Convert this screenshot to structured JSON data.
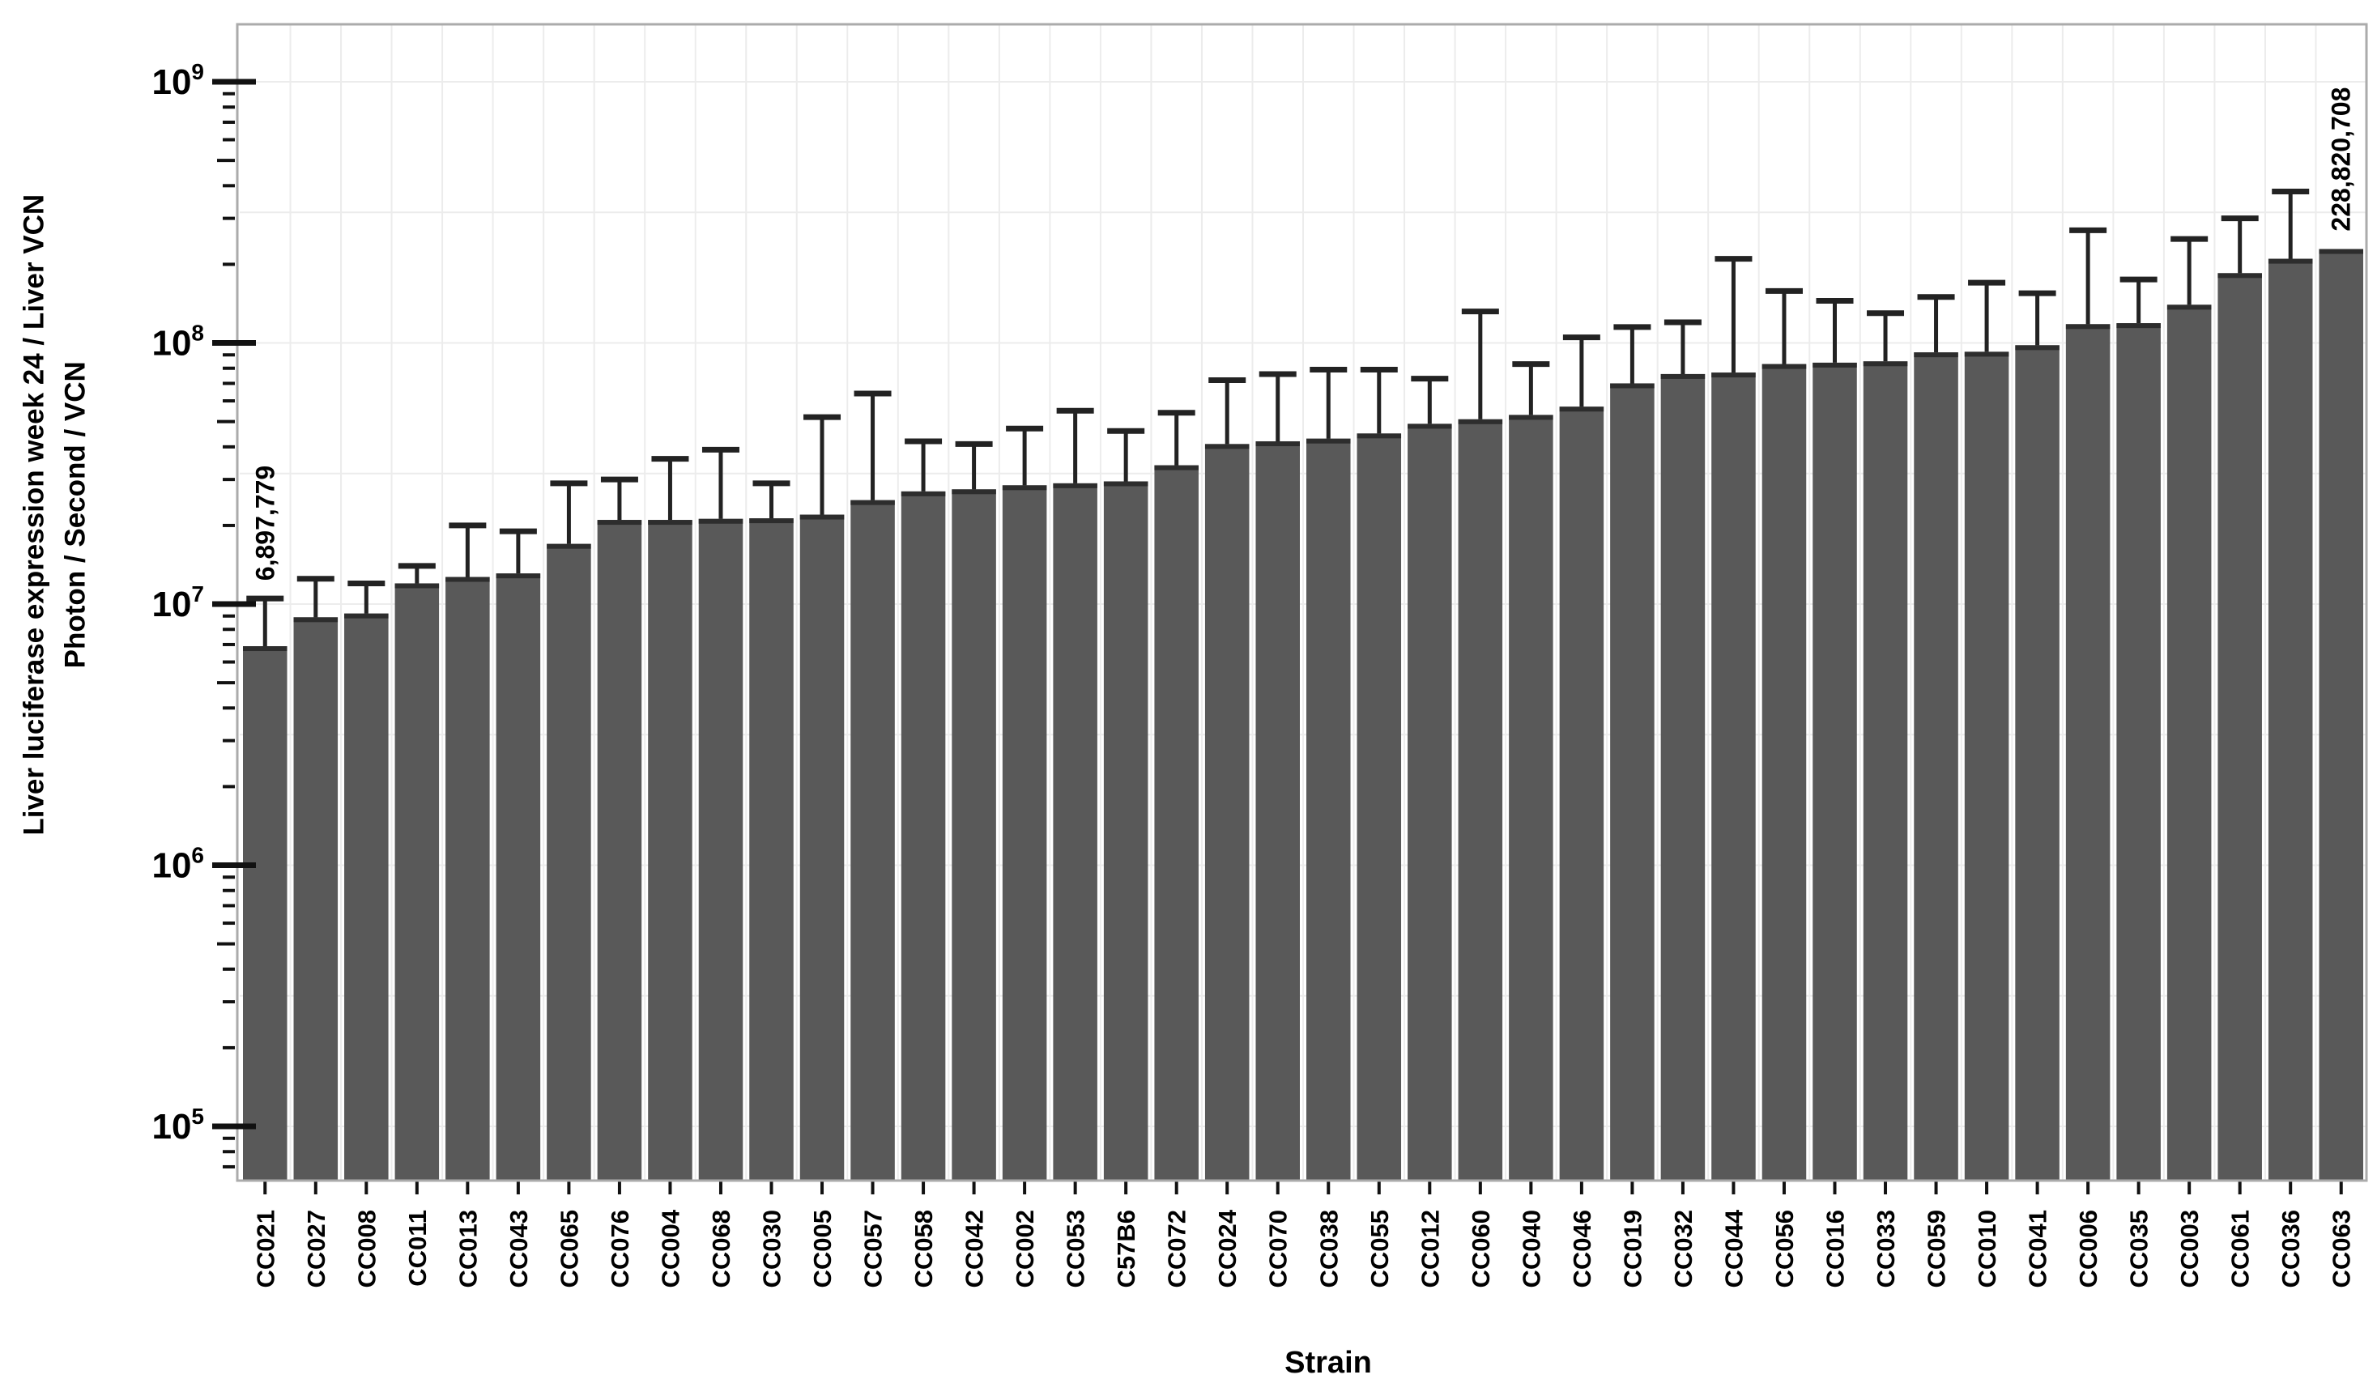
{
  "chart_data": {
    "type": "bar",
    "title": "",
    "xlabel": "Strain",
    "ylabel_lines": [
      "Liver luciferase expression week 24 /  Liver VCN",
      "Photon / Second  /  VCN"
    ],
    "y_scale": "log",
    "ylim": [
      65000,
      1600000000
    ],
    "grid": "light horizontal lines at every half decade, light vertical line at each bar boundary",
    "legend": "none",
    "colors": {
      "bar": "#595959",
      "bar_edge": "#2d2d2d",
      "error": "#222222",
      "grid": "#ececec",
      "frame": "#ababab",
      "tick": "#111111",
      "text": "#000000",
      "background": "#ffffff"
    },
    "y_ticks": [
      {
        "base": "10",
        "exp": "9",
        "value": 1000000000
      },
      {
        "base": "10",
        "exp": "8",
        "value": 100000000
      },
      {
        "base": "10",
        "exp": "7",
        "value": 10000000
      },
      {
        "base": "10",
        "exp": "6",
        "value": 1000000
      },
      {
        "base": "10",
        "exp": "5",
        "value": 100000
      }
    ],
    "categories": [
      "CC021",
      "CC027",
      "CC008",
      "CC011",
      "CC013",
      "CC043",
      "CC065",
      "CC076",
      "CC004",
      "CC068",
      "CC030",
      "CC005",
      "CC057",
      "CC058",
      "CC042",
      "CC002",
      "CC053",
      "C57B6",
      "CC072",
      "CC024",
      "CC070",
      "CC038",
      "CC055",
      "CC012",
      "CC060",
      "CC040",
      "CC046",
      "CC019",
      "CC032",
      "CC044",
      "CC056",
      "CC016",
      "CC033",
      "CC059",
      "CC010",
      "CC041",
      "CC006",
      "CC035",
      "CC003",
      "CC061",
      "CC036",
      "CC063"
    ],
    "values": [
      6897779,
      8900000,
      9200000,
      12000000,
      12700000,
      13100000,
      17000000,
      21000000,
      21000000,
      21200000,
      21300000,
      22000000,
      25000000,
      27000000,
      27500000,
      28500000,
      29000000,
      29500000,
      34000000,
      41000000,
      42000000,
      43000000,
      45000000,
      49000000,
      51000000,
      53000000,
      57000000,
      70000000,
      76000000,
      77000000,
      83000000,
      84000000,
      85000000,
      92000000,
      92500000,
      98000000,
      118000000,
      119000000,
      140000000,
      185000000,
      210000000,
      228820708
    ],
    "upper_error_values": [
      10500000,
      12500000,
      12000000,
      14000000,
      20000000,
      19000000,
      29000000,
      30000000,
      36000000,
      39000000,
      29000000,
      52000000,
      64000000,
      42000000,
      41000000,
      47000000,
      55000000,
      46000000,
      54000000,
      72000000,
      76000000,
      79000000,
      79000000,
      73000000,
      132000000,
      83000000,
      105000000,
      115000000,
      120000000,
      210000000,
      158000000,
      145000000,
      130000000,
      150000000,
      170000000,
      155000000,
      270000000,
      175000000,
      250000000,
      300000000,
      380000000,
      null
    ],
    "annotations": [
      {
        "target": "CC021",
        "text": "6,897,779"
      },
      {
        "target": "CC063",
        "text": "228,820,708"
      }
    ]
  }
}
